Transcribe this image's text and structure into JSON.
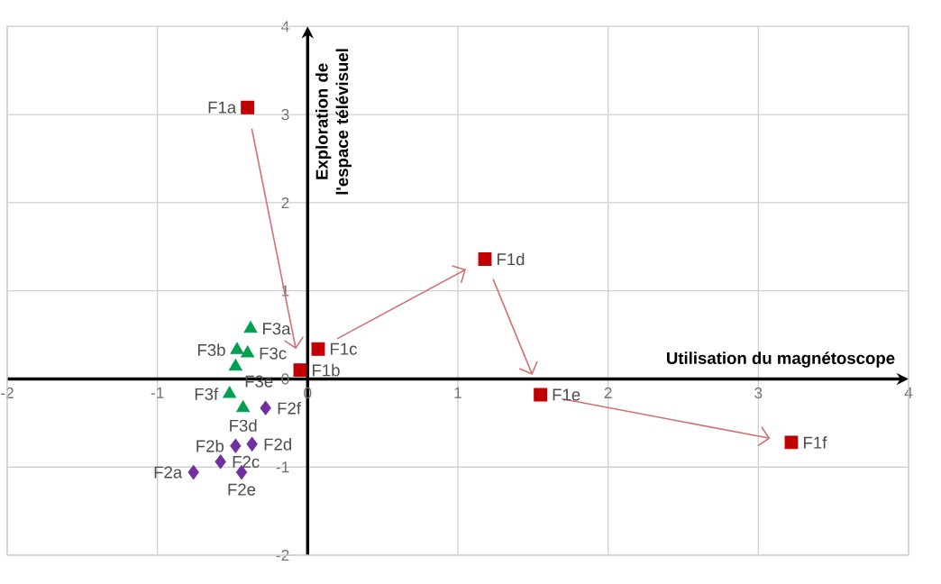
{
  "chart_data": {
    "type": "scatter",
    "xlabel": "Utilisation du magnétoscope",
    "ylabel": "Exploration de l'espace télévisuel",
    "xlim": [
      -2,
      4
    ],
    "ylim": [
      -2,
      4
    ],
    "xticks": [
      -2,
      -1,
      0,
      1,
      2,
      3,
      4
    ],
    "yticks": [
      -2,
      -1,
      0,
      1,
      2,
      3,
      4
    ],
    "grid": true,
    "series": [
      {
        "color": "#c00000",
        "marker": "square",
        "x": [
          -0.4,
          -0.05,
          0.07,
          1.18,
          1.55,
          3.22
        ],
        "values": [
          3.08,
          0.1,
          0.34,
          1.36,
          -0.18,
          -0.72
        ]
      },
      {
        "color": "#7030a0",
        "marker": "diamond",
        "x": [
          -0.76,
          -0.48,
          -0.58,
          -0.37,
          -0.44,
          -0.28
        ],
        "values": [
          -1.06,
          -0.76,
          -0.94,
          -0.74,
          -1.06,
          -0.33
        ]
      },
      {
        "color": "#00a050",
        "marker": "triangle",
        "x": [
          -0.38,
          -0.47,
          -0.4,
          -0.43,
          -0.48,
          -0.52
        ],
        "values": [
          0.57,
          0.33,
          0.29,
          -0.33,
          0.14,
          -0.17
        ]
      }
    ],
    "annotations": [
      {
        "text": "F1a",
        "x": -0.4,
        "y": 3.08
      },
      {
        "text": "F1b",
        "x": -0.05,
        "y": 0.1
      },
      {
        "text": "F1c",
        "x": 0.07,
        "y": 0.34
      },
      {
        "text": "F1d",
        "x": 1.18,
        "y": 1.36
      },
      {
        "text": "F1e",
        "x": 1.55,
        "y": -0.18
      },
      {
        "text": "F1f",
        "x": 3.22,
        "y": -0.72
      },
      {
        "text": "F2a",
        "x": -0.76,
        "y": -1.06
      },
      {
        "text": "F2b",
        "x": -0.48,
        "y": -0.76
      },
      {
        "text": "F2c",
        "x": -0.58,
        "y": -0.94
      },
      {
        "text": "F2d",
        "x": -0.37,
        "y": -0.74
      },
      {
        "text": "F2e",
        "x": -0.44,
        "y": -1.06
      },
      {
        "text": "F2f",
        "x": -0.28,
        "y": -0.33
      },
      {
        "text": "F3a",
        "x": -0.38,
        "y": 0.57
      },
      {
        "text": "F3b",
        "x": -0.47,
        "y": 0.33
      },
      {
        "text": "F3c",
        "x": -0.4,
        "y": 0.29
      },
      {
        "text": "F3d",
        "x": -0.43,
        "y": -0.33
      },
      {
        "text": "F3e",
        "x": -0.48,
        "y": 0.14
      },
      {
        "text": "F3f",
        "x": -0.52,
        "y": -0.17
      }
    ]
  }
}
